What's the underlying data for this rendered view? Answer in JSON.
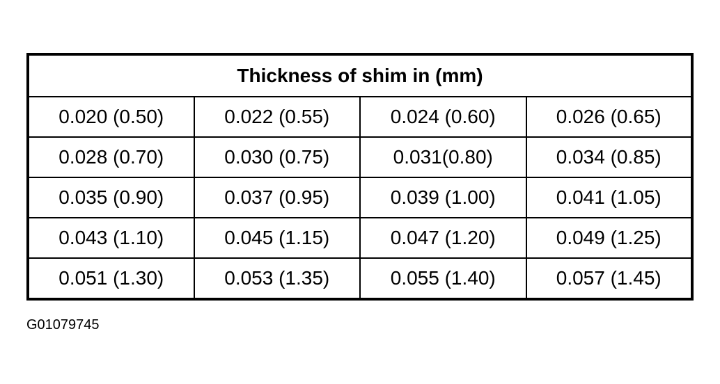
{
  "table": {
    "title": "Thickness of shim in (mm)",
    "rows": [
      [
        "0.020 (0.50)",
        "0.022 (0.55)",
        "0.024 (0.60)",
        "0.026 (0.65)"
      ],
      [
        "0.028 (0.70)",
        "0.030 (0.75)",
        "0.031(0.80)",
        "0.034 (0.85)"
      ],
      [
        "0.035 (0.90)",
        "0.037 (0.95)",
        "0.039 (1.00)",
        "0.041 (1.05)"
      ],
      [
        "0.043 (1.10)",
        "0.045 (1.15)",
        "0.047 (1.20)",
        "0.049 (1.25)"
      ],
      [
        "0.051 (1.30)",
        "0.053 (1.35)",
        "0.055 (1.40)",
        "0.057 (1.45)"
      ]
    ]
  },
  "footer": {
    "code": "G01079745"
  }
}
